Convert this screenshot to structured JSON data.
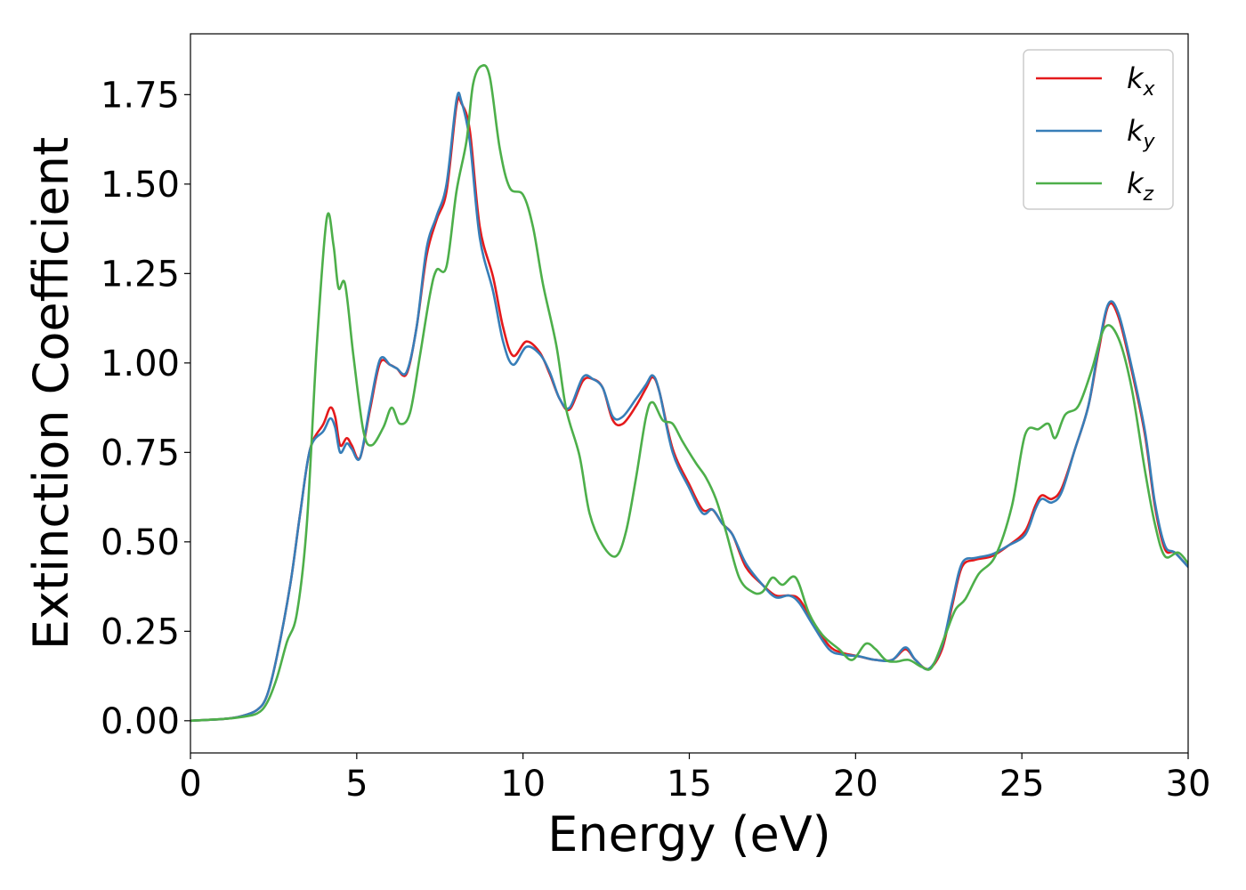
{
  "chart_data": {
    "type": "line",
    "title": "",
    "xlabel": "Energy (eV)",
    "ylabel": "Extinction Coefficient",
    "xlim": [
      0,
      30
    ],
    "ylim": [
      -0.09,
      1.92
    ],
    "xticks": [
      "0",
      "5",
      "10",
      "15",
      "20",
      "25",
      "30"
    ],
    "yticks": [
      "0.00",
      "0.25",
      "0.50",
      "0.75",
      "1.00",
      "1.25",
      "1.50",
      "1.75"
    ],
    "grid": false,
    "legend_position": "upper right",
    "legend": [
      {
        "base": "k",
        "sub": "x"
      },
      {
        "base": "k",
        "sub": "y"
      },
      {
        "base": "k",
        "sub": "z"
      }
    ],
    "series": [
      {
        "name": "k_x",
        "color": "#e41a1c",
        "points": [
          [
            0,
            0
          ],
          [
            1,
            0.005
          ],
          [
            1.5,
            0.012
          ],
          [
            2,
            0.03
          ],
          [
            2.3,
            0.07
          ],
          [
            2.6,
            0.18
          ],
          [
            3,
            0.38
          ],
          [
            3.3,
            0.58
          ],
          [
            3.6,
            0.76
          ],
          [
            4,
            0.83
          ],
          [
            4.2,
            0.875
          ],
          [
            4.35,
            0.85
          ],
          [
            4.5,
            0.77
          ],
          [
            4.7,
            0.79
          ],
          [
            4.85,
            0.77
          ],
          [
            5.1,
            0.735
          ],
          [
            5.4,
            0.87
          ],
          [
            5.7,
            1.0
          ],
          [
            6,
            0.995
          ],
          [
            6.2,
            0.985
          ],
          [
            6.5,
            0.97
          ],
          [
            6.8,
            1.1
          ],
          [
            7.1,
            1.3
          ],
          [
            7.4,
            1.4
          ],
          [
            7.7,
            1.48
          ],
          [
            8,
            1.72
          ],
          [
            8.15,
            1.725
          ],
          [
            8.4,
            1.65
          ],
          [
            8.7,
            1.38
          ],
          [
            9.1,
            1.24
          ],
          [
            9.4,
            1.1
          ],
          [
            9.7,
            1.02
          ],
          [
            10.1,
            1.06
          ],
          [
            10.5,
            1.03
          ],
          [
            10.8,
            0.97
          ],
          [
            11.1,
            0.9
          ],
          [
            11.4,
            0.87
          ],
          [
            11.8,
            0.95
          ],
          [
            12.1,
            0.955
          ],
          [
            12.4,
            0.93
          ],
          [
            12.7,
            0.84
          ],
          [
            13,
            0.83
          ],
          [
            13.4,
            0.88
          ],
          [
            13.7,
            0.93
          ],
          [
            13.9,
            0.96
          ],
          [
            14.1,
            0.92
          ],
          [
            14.5,
            0.76
          ],
          [
            15,
            0.66
          ],
          [
            15.4,
            0.59
          ],
          [
            15.7,
            0.59
          ],
          [
            16,
            0.55
          ],
          [
            16.3,
            0.52
          ],
          [
            16.7,
            0.43
          ],
          [
            17.2,
            0.38
          ],
          [
            17.6,
            0.35
          ],
          [
            18,
            0.35
          ],
          [
            18.3,
            0.34
          ],
          [
            18.7,
            0.28
          ],
          [
            19.2,
            0.21
          ],
          [
            19.6,
            0.19
          ],
          [
            20.1,
            0.18
          ],
          [
            20.6,
            0.17
          ],
          [
            21.1,
            0.17
          ],
          [
            21.5,
            0.2
          ],
          [
            21.8,
            0.17
          ],
          [
            22.2,
            0.145
          ],
          [
            22.6,
            0.2
          ],
          [
            22.9,
            0.32
          ],
          [
            23.2,
            0.43
          ],
          [
            23.6,
            0.45
          ],
          [
            24.1,
            0.46
          ],
          [
            24.6,
            0.49
          ],
          [
            25.1,
            0.53
          ],
          [
            25.4,
            0.6
          ],
          [
            25.6,
            0.63
          ],
          [
            25.9,
            0.62
          ],
          [
            26.2,
            0.65
          ],
          [
            26.6,
            0.76
          ],
          [
            27,
            0.88
          ],
          [
            27.3,
            1.03
          ],
          [
            27.6,
            1.16
          ],
          [
            27.9,
            1.13
          ],
          [
            28.3,
            0.98
          ],
          [
            28.7,
            0.8
          ],
          [
            29,
            0.6
          ],
          [
            29.3,
            0.48
          ],
          [
            29.6,
            0.47
          ],
          [
            30,
            0.43
          ]
        ]
      },
      {
        "name": "k_y",
        "color": "#377eb8",
        "points": [
          [
            0,
            0
          ],
          [
            1,
            0.005
          ],
          [
            1.5,
            0.012
          ],
          [
            2,
            0.03
          ],
          [
            2.3,
            0.07
          ],
          [
            2.6,
            0.18
          ],
          [
            3,
            0.38
          ],
          [
            3.3,
            0.58
          ],
          [
            3.6,
            0.76
          ],
          [
            4,
            0.81
          ],
          [
            4.2,
            0.845
          ],
          [
            4.35,
            0.82
          ],
          [
            4.5,
            0.75
          ],
          [
            4.7,
            0.775
          ],
          [
            4.85,
            0.76
          ],
          [
            5.1,
            0.735
          ],
          [
            5.4,
            0.88
          ],
          [
            5.7,
            1.01
          ],
          [
            6,
            0.995
          ],
          [
            6.2,
            0.985
          ],
          [
            6.5,
            0.975
          ],
          [
            6.8,
            1.1
          ],
          [
            7.1,
            1.32
          ],
          [
            7.4,
            1.41
          ],
          [
            7.7,
            1.5
          ],
          [
            8,
            1.735
          ],
          [
            8.15,
            1.73
          ],
          [
            8.4,
            1.62
          ],
          [
            8.7,
            1.35
          ],
          [
            9.1,
            1.2
          ],
          [
            9.4,
            1.06
          ],
          [
            9.7,
            0.995
          ],
          [
            10.1,
            1.045
          ],
          [
            10.5,
            1.025
          ],
          [
            10.8,
            0.975
          ],
          [
            11.1,
            0.9
          ],
          [
            11.4,
            0.875
          ],
          [
            11.8,
            0.96
          ],
          [
            12.1,
            0.955
          ],
          [
            12.4,
            0.93
          ],
          [
            12.7,
            0.85
          ],
          [
            13,
            0.85
          ],
          [
            13.4,
            0.9
          ],
          [
            13.7,
            0.94
          ],
          [
            13.9,
            0.965
          ],
          [
            14.1,
            0.92
          ],
          [
            14.5,
            0.75
          ],
          [
            15,
            0.65
          ],
          [
            15.4,
            0.58
          ],
          [
            15.7,
            0.59
          ],
          [
            16,
            0.55
          ],
          [
            16.3,
            0.52
          ],
          [
            16.7,
            0.44
          ],
          [
            17.2,
            0.38
          ],
          [
            17.6,
            0.345
          ],
          [
            18,
            0.35
          ],
          [
            18.3,
            0.33
          ],
          [
            18.7,
            0.27
          ],
          [
            19.2,
            0.2
          ],
          [
            19.6,
            0.185
          ],
          [
            20.1,
            0.18
          ],
          [
            20.6,
            0.17
          ],
          [
            21.1,
            0.17
          ],
          [
            21.5,
            0.205
          ],
          [
            21.8,
            0.17
          ],
          [
            22.2,
            0.145
          ],
          [
            22.6,
            0.21
          ],
          [
            22.9,
            0.33
          ],
          [
            23.2,
            0.44
          ],
          [
            23.6,
            0.455
          ],
          [
            24.1,
            0.465
          ],
          [
            24.6,
            0.49
          ],
          [
            25.1,
            0.52
          ],
          [
            25.4,
            0.59
          ],
          [
            25.6,
            0.62
          ],
          [
            25.9,
            0.61
          ],
          [
            26.2,
            0.64
          ],
          [
            26.6,
            0.76
          ],
          [
            27,
            0.88
          ],
          [
            27.3,
            1.04
          ],
          [
            27.6,
            1.165
          ],
          [
            27.9,
            1.14
          ],
          [
            28.3,
            0.99
          ],
          [
            28.7,
            0.81
          ],
          [
            29,
            0.61
          ],
          [
            29.3,
            0.49
          ],
          [
            29.6,
            0.47
          ],
          [
            30,
            0.43
          ]
        ]
      },
      {
        "name": "k_z",
        "color": "#4daf4a",
        "points": [
          [
            0,
            0
          ],
          [
            1,
            0.005
          ],
          [
            1.5,
            0.01
          ],
          [
            2,
            0.02
          ],
          [
            2.3,
            0.05
          ],
          [
            2.6,
            0.12
          ],
          [
            2.9,
            0.22
          ],
          [
            3.2,
            0.3
          ],
          [
            3.5,
            0.55
          ],
          [
            3.8,
            1.05
          ],
          [
            4.1,
            1.405
          ],
          [
            4.3,
            1.33
          ],
          [
            4.45,
            1.21
          ],
          [
            4.65,
            1.22
          ],
          [
            4.9,
            1.02
          ],
          [
            5.2,
            0.81
          ],
          [
            5.45,
            0.77
          ],
          [
            5.8,
            0.82
          ],
          [
            6.05,
            0.875
          ],
          [
            6.3,
            0.83
          ],
          [
            6.6,
            0.86
          ],
          [
            6.9,
            1.02
          ],
          [
            7.2,
            1.19
          ],
          [
            7.4,
            1.26
          ],
          [
            7.7,
            1.27
          ],
          [
            8,
            1.48
          ],
          [
            8.3,
            1.62
          ],
          [
            8.5,
            1.78
          ],
          [
            8.75,
            1.83
          ],
          [
            9,
            1.8
          ],
          [
            9.3,
            1.6
          ],
          [
            9.6,
            1.49
          ],
          [
            10,
            1.47
          ],
          [
            10.3,
            1.38
          ],
          [
            10.6,
            1.22
          ],
          [
            11,
            1.05
          ],
          [
            11.3,
            0.87
          ],
          [
            11.7,
            0.74
          ],
          [
            12,
            0.58
          ],
          [
            12.4,
            0.49
          ],
          [
            12.8,
            0.46
          ],
          [
            13.1,
            0.53
          ],
          [
            13.4,
            0.68
          ],
          [
            13.7,
            0.85
          ],
          [
            13.9,
            0.89
          ],
          [
            14.2,
            0.84
          ],
          [
            14.5,
            0.83
          ],
          [
            14.8,
            0.78
          ],
          [
            15.2,
            0.72
          ],
          [
            15.5,
            0.68
          ],
          [
            15.8,
            0.62
          ],
          [
            16.1,
            0.53
          ],
          [
            16.5,
            0.4
          ],
          [
            16.9,
            0.36
          ],
          [
            17.2,
            0.36
          ],
          [
            17.5,
            0.4
          ],
          [
            17.8,
            0.38
          ],
          [
            18.2,
            0.4
          ],
          [
            18.6,
            0.3
          ],
          [
            19,
            0.24
          ],
          [
            19.5,
            0.2
          ],
          [
            19.9,
            0.17
          ],
          [
            20.3,
            0.215
          ],
          [
            20.6,
            0.2
          ],
          [
            20.9,
            0.17
          ],
          [
            21.2,
            0.165
          ],
          [
            21.6,
            0.17
          ],
          [
            22,
            0.15
          ],
          [
            22.3,
            0.15
          ],
          [
            22.7,
            0.24
          ],
          [
            23,
            0.31
          ],
          [
            23.3,
            0.34
          ],
          [
            23.7,
            0.41
          ],
          [
            24.2,
            0.46
          ],
          [
            24.7,
            0.6
          ],
          [
            25.1,
            0.8
          ],
          [
            25.5,
            0.815
          ],
          [
            25.8,
            0.83
          ],
          [
            26,
            0.79
          ],
          [
            26.3,
            0.855
          ],
          [
            26.7,
            0.88
          ],
          [
            27.1,
            0.98
          ],
          [
            27.5,
            1.1
          ],
          [
            27.9,
            1.07
          ],
          [
            28.3,
            0.93
          ],
          [
            28.7,
            0.7
          ],
          [
            29,
            0.55
          ],
          [
            29.3,
            0.46
          ],
          [
            29.7,
            0.47
          ],
          [
            30,
            0.44
          ]
        ]
      }
    ]
  }
}
